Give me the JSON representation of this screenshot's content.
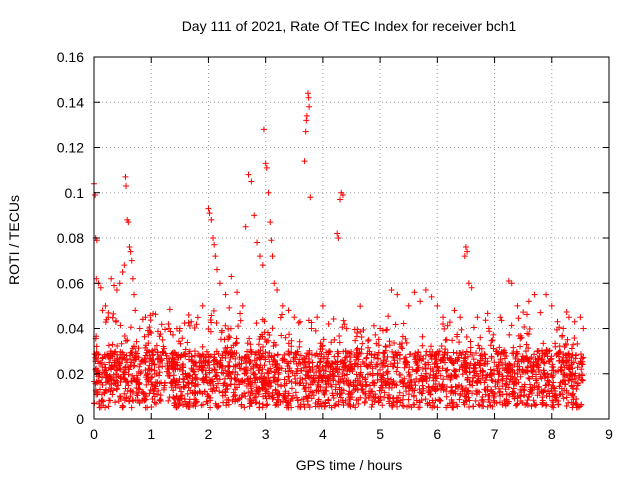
{
  "chart_data": {
    "type": "scatter",
    "title": "Day 111 of 2021, Rate Of TEC Index for receiver bch1",
    "xlabel": "GPS time / hours",
    "ylabel": "ROTI / TECUs",
    "xlim": [
      0,
      9
    ],
    "ylim": [
      0,
      0.16
    ],
    "x_ticks": [
      0,
      1,
      2,
      3,
      4,
      5,
      6,
      7,
      8,
      9
    ],
    "x_tick_labels": [
      "0",
      "1",
      "2",
      "3",
      "4",
      "5",
      "6",
      "7",
      "8",
      "9"
    ],
    "y_ticks": [
      0,
      0.02,
      0.04,
      0.06,
      0.08,
      0.1,
      0.12,
      0.14,
      0.16
    ],
    "y_tick_labels": [
      "0",
      "0.02",
      "0.04",
      "0.06",
      "0.08",
      "0.1",
      "0.12",
      "0.14",
      "0.16"
    ],
    "grid": true,
    "marker": "+",
    "marker_color": "#ff0000",
    "series": [
      {
        "name": "ROTI",
        "points": [
          [
            0.0,
            0.104
          ],
          [
            0.02,
            0.099
          ],
          [
            0.03,
            0.08
          ],
          [
            0.05,
            0.079
          ],
          [
            0.04,
            0.062
          ],
          [
            0.08,
            0.06
          ],
          [
            0.12,
            0.058
          ],
          [
            0.15,
            0.048
          ],
          [
            0.2,
            0.05
          ],
          [
            0.25,
            0.045
          ],
          [
            0.3,
            0.062
          ],
          [
            0.35,
            0.059
          ],
          [
            0.4,
            0.057
          ],
          [
            0.45,
            0.06
          ],
          [
            0.5,
            0.065
          ],
          [
            0.53,
            0.068
          ],
          [
            0.55,
            0.107
          ],
          [
            0.56,
            0.103
          ],
          [
            0.58,
            0.088
          ],
          [
            0.6,
            0.087
          ],
          [
            0.62,
            0.076
          ],
          [
            0.64,
            0.074
          ],
          [
            0.66,
            0.07
          ],
          [
            0.68,
            0.062
          ],
          [
            0.7,
            0.055
          ],
          [
            0.72,
            0.048
          ],
          [
            0.8,
            0.04
          ],
          [
            0.9,
            0.045
          ],
          [
            1.0,
            0.038
          ],
          [
            1.2,
            0.035
          ],
          [
            1.3,
            0.042
          ],
          [
            1.5,
            0.04
          ],
          [
            1.7,
            0.043
          ],
          [
            1.9,
            0.05
          ],
          [
            2.0,
            0.093
          ],
          [
            2.02,
            0.091
          ],
          [
            2.05,
            0.088
          ],
          [
            2.08,
            0.08
          ],
          [
            2.1,
            0.077
          ],
          [
            2.12,
            0.072
          ],
          [
            2.15,
            0.066
          ],
          [
            2.2,
            0.06
          ],
          [
            2.3,
            0.055
          ],
          [
            2.4,
            0.063
          ],
          [
            2.5,
            0.056
          ],
          [
            2.6,
            0.05
          ],
          [
            2.65,
            0.085
          ],
          [
            2.7,
            0.108
          ],
          [
            2.75,
            0.105
          ],
          [
            2.8,
            0.09
          ],
          [
            2.85,
            0.078
          ],
          [
            2.9,
            0.072
          ],
          [
            2.95,
            0.068
          ],
          [
            2.97,
            0.128
          ],
          [
            3.0,
            0.113
          ],
          [
            3.02,
            0.111
          ],
          [
            3.05,
            0.1
          ],
          [
            3.08,
            0.087
          ],
          [
            3.1,
            0.079
          ],
          [
            3.12,
            0.072
          ],
          [
            3.15,
            0.06
          ],
          [
            3.2,
            0.057
          ],
          [
            3.3,
            0.05
          ],
          [
            3.4,
            0.048
          ],
          [
            3.5,
            0.045
          ],
          [
            3.6,
            0.043
          ],
          [
            3.68,
            0.114
          ],
          [
            3.7,
            0.127
          ],
          [
            3.71,
            0.132
          ],
          [
            3.72,
            0.134
          ],
          [
            3.74,
            0.144
          ],
          [
            3.75,
            0.142
          ],
          [
            3.76,
            0.138
          ],
          [
            3.78,
            0.098
          ],
          [
            3.8,
            0.04
          ],
          [
            3.9,
            0.045
          ],
          [
            4.0,
            0.05
          ],
          [
            4.1,
            0.042
          ],
          [
            4.2,
            0.035
          ],
          [
            4.25,
            0.082
          ],
          [
            4.27,
            0.08
          ],
          [
            4.3,
            0.097
          ],
          [
            4.32,
            0.1
          ],
          [
            4.35,
            0.099
          ],
          [
            4.4,
            0.03
          ],
          [
            4.6,
            0.038
          ],
          [
            4.8,
            0.035
          ],
          [
            5.0,
            0.04
          ],
          [
            5.2,
            0.057
          ],
          [
            5.3,
            0.055
          ],
          [
            5.5,
            0.05
          ],
          [
            5.6,
            0.056
          ],
          [
            5.7,
            0.052
          ],
          [
            5.8,
            0.057
          ],
          [
            5.9,
            0.054
          ],
          [
            6.0,
            0.05
          ],
          [
            6.1,
            0.045
          ],
          [
            6.3,
            0.048
          ],
          [
            6.4,
            0.045
          ],
          [
            6.48,
            0.072
          ],
          [
            6.5,
            0.076
          ],
          [
            6.52,
            0.074
          ],
          [
            6.55,
            0.06
          ],
          [
            6.6,
            0.058
          ],
          [
            6.7,
            0.045
          ],
          [
            6.9,
            0.04
          ],
          [
            7.1,
            0.045
          ],
          [
            7.25,
            0.061
          ],
          [
            7.3,
            0.06
          ],
          [
            7.4,
            0.05
          ],
          [
            7.6,
            0.052
          ],
          [
            7.7,
            0.055
          ],
          [
            7.8,
            0.047
          ],
          [
            7.9,
            0.055
          ],
          [
            8.0,
            0.05
          ],
          [
            8.1,
            0.043
          ],
          [
            8.2,
            0.04
          ],
          [
            8.3,
            0.045
          ],
          [
            8.4,
            0.043
          ],
          [
            8.5,
            0.045
          ],
          [
            8.55,
            0.04
          ]
        ]
      }
    ]
  }
}
